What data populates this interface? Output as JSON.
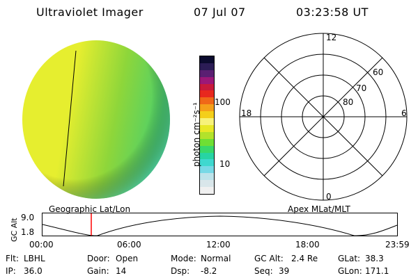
{
  "header": {
    "title": "Ultraviolet Imager",
    "date": "07 Jul 07",
    "time": "03:23:58 UT"
  },
  "colorbar": {
    "unit_label": "photon cm⁻²s⁻¹",
    "ticks": [
      "100",
      "10"
    ],
    "scale": "log",
    "colors": [
      "#f0f0f0",
      "#d9e6ea",
      "#bde3ea",
      "#78d9e6",
      "#3fd8cf",
      "#27d4a4",
      "#39d86a",
      "#6fdf34",
      "#b3e22b",
      "#e8e827",
      "#f7f27a",
      "#f4cf1a",
      "#f5a01a",
      "#f06818",
      "#e8281e",
      "#c81a3c",
      "#9c1878",
      "#5a1f72",
      "#2b1c55",
      "#0b0b2e"
    ]
  },
  "image_panel": {
    "label": "Geographic Lat/Lon",
    "colors": {
      "left": "#e6ee2f",
      "mid": "#8ed63a",
      "right": "#4dd06a",
      "edge": "#55dcc8"
    }
  },
  "polar_panel": {
    "label": "Apex MLat/MLT",
    "mlt_labels": [
      "12",
      "18",
      "6",
      "0"
    ],
    "lat_labels": [
      "60",
      "70",
      "80"
    ]
  },
  "orbit_plot": {
    "ylabel": "GC Alt",
    "yticks": [
      "9.0",
      "1.8"
    ],
    "xticks": [
      "00:00",
      "06:00",
      "12:00",
      "18:00",
      "23:59"
    ],
    "current_time_color": "#ff0000"
  },
  "status": {
    "row1": [
      {
        "key": "Flt:",
        "value": "LBHL"
      },
      {
        "key": "Door:",
        "value": "Open"
      },
      {
        "key": "Mode:",
        "value": "Normal"
      },
      {
        "key": "GC Alt:",
        "value": "2.4 Re"
      },
      {
        "key": "GLat:",
        "value": "38.3"
      }
    ],
    "row2": [
      {
        "key": "IP:",
        "value": "36.0"
      },
      {
        "key": "Gain:",
        "value": "14"
      },
      {
        "key": "Dsp:",
        "value": "-8.2"
      },
      {
        "key": "Seq:",
        "value": "39"
      },
      {
        "key": "GLon:",
        "value": "171.1"
      }
    ]
  }
}
